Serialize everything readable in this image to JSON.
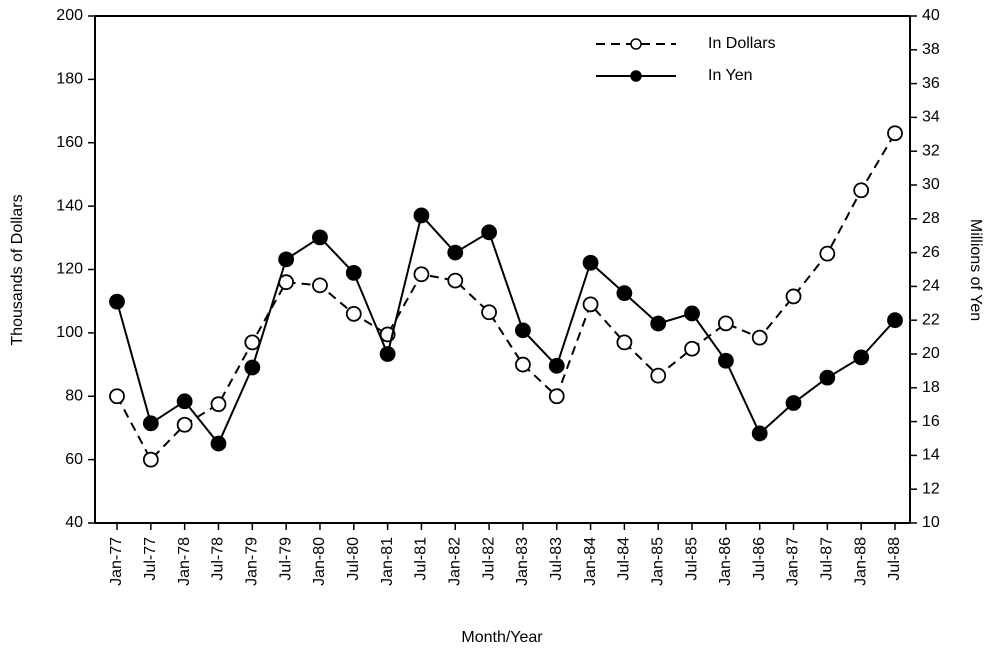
{
  "chart_data": {
    "type": "line",
    "x_label": "Month/Year",
    "y_label": "Thousands of Dollars",
    "y2_label": "Millions of Yen",
    "categories": [
      "Jan-77",
      "Jul-77",
      "Jan-78",
      "Jul-78",
      "Jan-79",
      "Jul-79",
      "Jan-80",
      "Jul-80",
      "Jan-81",
      "Jul-81",
      "Jan-82",
      "Jul-82",
      "Jan-83",
      "Jul-83",
      "Jan-84",
      "Jul-84",
      "Jan-85",
      "Jul-85",
      "Jan-86",
      "Jul-86",
      "Jan-87",
      "Jul-87",
      "Jan-88",
      "Jul-88"
    ],
    "series": [
      {
        "name": "In Dollars",
        "color": "#000000",
        "dash": true,
        "filled": false,
        "values": [
          80,
          60,
          71,
          77.5,
          97,
          116,
          115,
          106,
          99.5,
          118.5,
          116.5,
          106.5,
          90,
          80,
          109,
          97,
          86.5,
          95,
          103,
          98.5,
          111.5,
          125,
          145,
          163
        ]
      },
      {
        "name": "In Yen",
        "color": "#000000",
        "dash": false,
        "filled": true,
        "axis": "y2",
        "values": [
          23.1,
          15.9,
          17.2,
          14.7,
          19.2,
          25.6,
          26.9,
          24.8,
          20,
          28.2,
          26,
          27.2,
          21.4,
          19.3,
          25.4,
          23.6,
          21.8,
          22.4,
          19.6,
          15.3,
          17.1,
          18.6,
          19.8,
          22
        ]
      }
    ],
    "ylim": [
      40,
      200
    ],
    "yticks": [
      40,
      60,
      80,
      100,
      120,
      140,
      160,
      180,
      200
    ],
    "y2lim": [
      10,
      40
    ],
    "y2ticks": [
      10,
      12,
      14,
      16,
      18,
      20,
      22,
      24,
      26,
      28,
      30,
      32,
      34,
      36,
      38,
      40
    ],
    "legend": "upper right"
  }
}
